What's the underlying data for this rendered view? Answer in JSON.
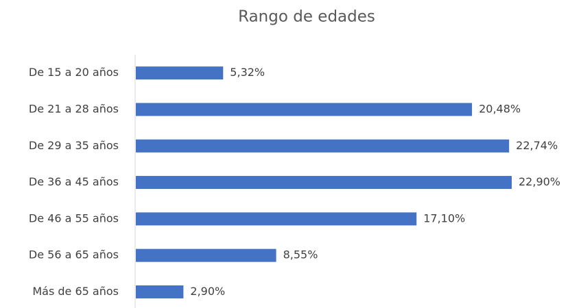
{
  "chart_data": {
    "type": "bar",
    "orientation": "horizontal",
    "title": "Rango de edades",
    "categories": [
      "De 15 a 20 años",
      "De 21 a 28 años",
      "De 29 a 35 años",
      "De 36 a 45 años",
      "De 46 a 55 años",
      "De 56 a 65 años",
      "Más de 65 años"
    ],
    "values": [
      5.32,
      20.48,
      22.74,
      22.9,
      17.1,
      8.55,
      2.9
    ],
    "value_labels": [
      "5,32%",
      "20,48%",
      "22,74%",
      "22,90%",
      "17,10%",
      "8,55%",
      "2,90%"
    ],
    "color": "#4472c4"
  }
}
